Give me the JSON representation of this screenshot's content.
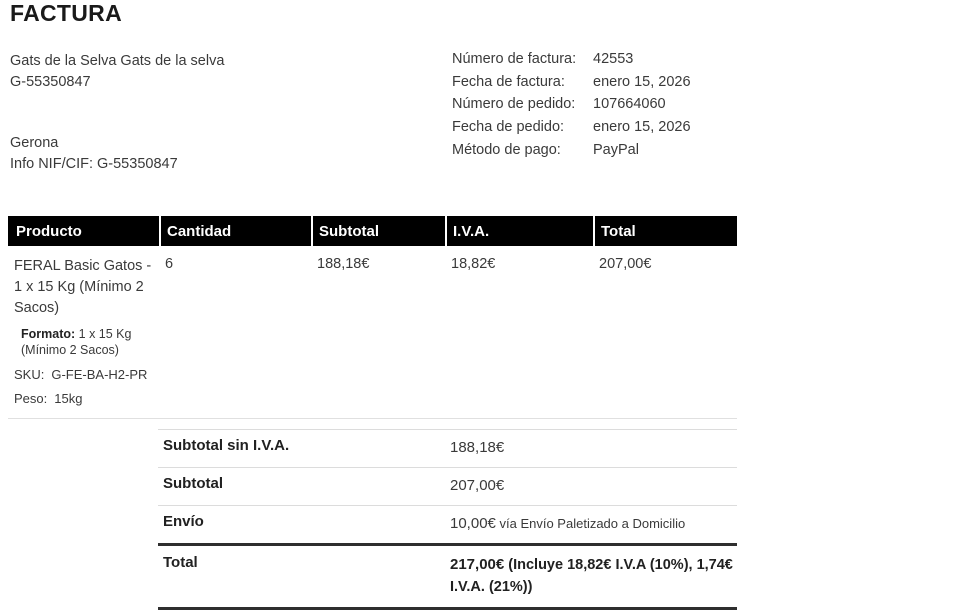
{
  "page": {
    "title": "FACTURA"
  },
  "seller": {
    "name": "Gats de la Selva Gats de la selva",
    "company_id": "G-55350847",
    "city": "Gerona",
    "nif_line": "Info NIF/CIF: G-55350847"
  },
  "meta": {
    "rows": [
      {
        "label": "Número de factura:",
        "value": "42553"
      },
      {
        "label": "Fecha de factura:",
        "value": "enero 15, 2026"
      },
      {
        "label": "Número de pedido:",
        "value": "107664060"
      },
      {
        "label": "Fecha de pedido:",
        "value": "enero 15, 2026"
      },
      {
        "label": "Método de pago:",
        "value": "PayPal"
      }
    ]
  },
  "items_table": {
    "headers": [
      "Producto",
      "Cantidad",
      "Subtotal",
      "I.V.A.",
      "Total"
    ],
    "rows": [
      {
        "product_name": "FERAL Basic Gatos - 1 x 15 Kg (Mínimo 2 Sacos)",
        "formato_label": "Formato:",
        "formato_value": " 1 x 15 Kg (Mínimo 2 Sacos)",
        "sku_label": "SKU:",
        "sku_value": "G-FE-BA-H2-PR",
        "peso_label": "Peso:",
        "peso_value": "15kg",
        "cantidad": "6",
        "subtotal": "188,18€",
        "iva": "18,82€",
        "total": "207,00€"
      }
    ]
  },
  "totals": {
    "rows": [
      {
        "label": "Subtotal sin I.V.A.",
        "value": "188,18€",
        "note": ""
      },
      {
        "label": "Subtotal",
        "value": "207,00€",
        "note": ""
      },
      {
        "label": "Envío",
        "value": "10,00€",
        "note": " vía Envío Paletizado a Domicilio"
      },
      {
        "label": "Total",
        "value": "217,00€",
        "note": " (Incluye 18,82€ I.V.A (10%), 1,74€ I.V.A. (21%))"
      }
    ]
  },
  "colors": {
    "header_bg": "#000000",
    "header_text": "#ffffff",
    "body_text": "#3a3a3a",
    "strong_text": "#212121",
    "light_border": "#dcdcdc",
    "thick_border": "#2f2f2f"
  }
}
